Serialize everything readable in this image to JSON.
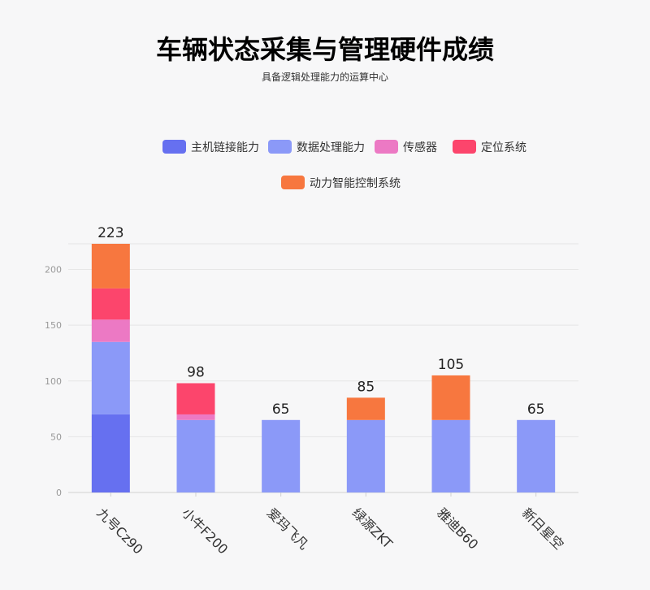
{
  "chart_data": {
    "type": "bar",
    "stacked": true,
    "title": "车辆状态采集与管理硬件成绩",
    "subtitle": "具备逻辑处理能力的运算中心",
    "categories": [
      "九号Cz90",
      "小牛F200",
      "爱玛飞凡",
      "绿源ZKT",
      "雅迪B60",
      "新日星空"
    ],
    "series": [
      {
        "name": "主机链接能力",
        "color": "#6670f0",
        "values": [
          70,
          0,
          0,
          0,
          0,
          0
        ]
      },
      {
        "name": "数据处理能力",
        "color": "#8b99f8",
        "values": [
          65,
          65,
          65,
          65,
          65,
          65
        ]
      },
      {
        "name": "传感器",
        "color": "#ec79c4",
        "values": [
          20,
          5,
          0,
          0,
          0,
          0
        ]
      },
      {
        "name": "定位系统",
        "color": "#fc456c",
        "values": [
          28,
          28,
          0,
          0,
          0,
          0
        ]
      },
      {
        "name": "动力智能控制系统",
        "color": "#f7773f",
        "values": [
          40,
          0,
          0,
          20,
          40,
          0
        ]
      }
    ],
    "totals": [
      "223",
      "98",
      "65",
      "85",
      "105",
      "65"
    ],
    "y_ticks": [
      "0",
      "50",
      "100",
      "150",
      "200"
    ],
    "ylim": [
      0,
      223
    ],
    "grid": true,
    "legend_position": "top-center"
  }
}
